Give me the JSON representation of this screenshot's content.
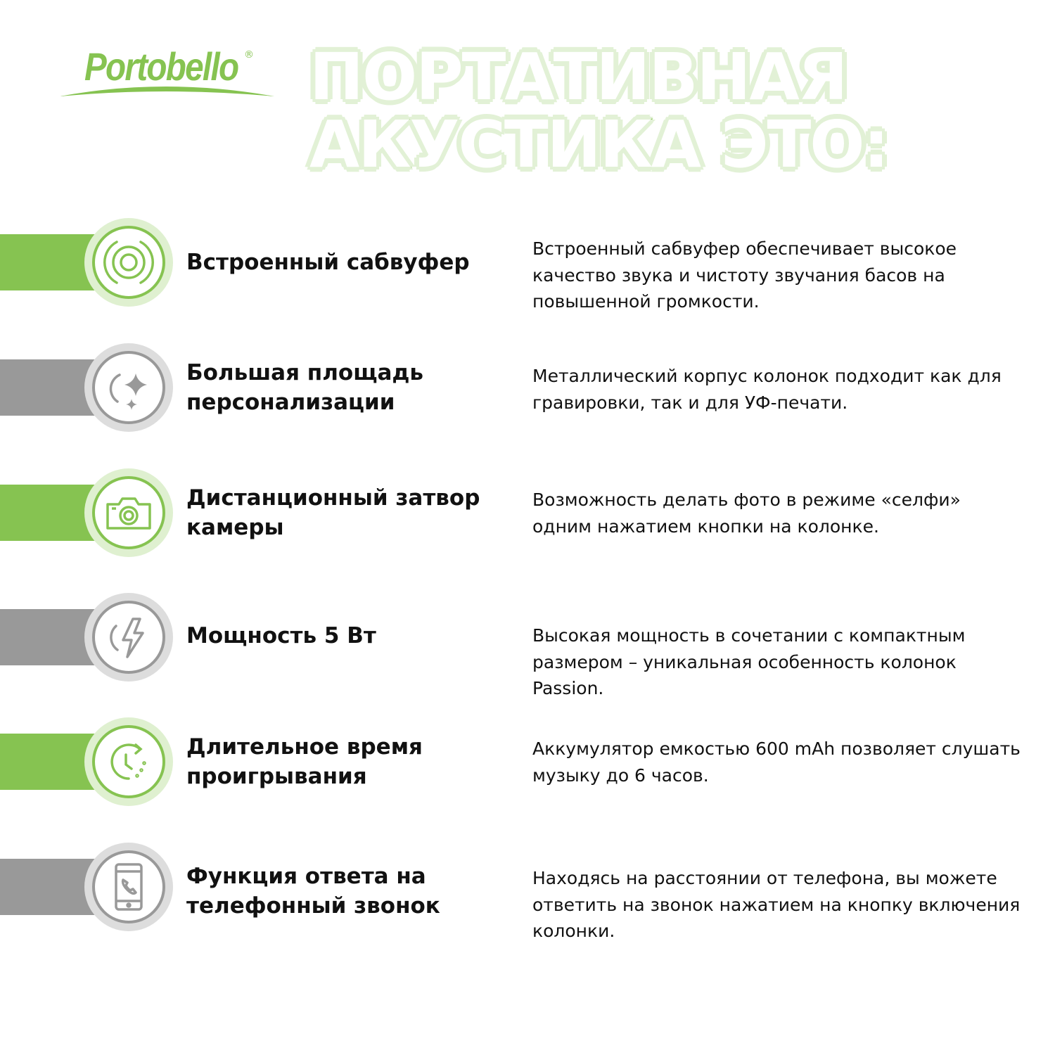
{
  "logo": {
    "text": "Portobello",
    "mark": "®"
  },
  "headline": {
    "line1": "ПОРТАТИВНАЯ",
    "line2": "АКУСТИКА ЭТО:"
  },
  "colors": {
    "green": "#86c351",
    "green_light": "#dff0d0",
    "gray": "#999999",
    "gray_light": "#dddddd"
  },
  "features": [
    {
      "icon": "subwoofer-icon",
      "color": "green",
      "title": "Встроенный сабвуфер",
      "description": "Встроенный сабвуфер обеспечивает высокое качество звука и чистоту звучания басов на повышенной громкости."
    },
    {
      "icon": "sparkle-icon",
      "color": "gray",
      "title": "Большая площадь персонализации",
      "description": "Металлический корпус колонок подходит как для гравировки, так и для УФ-печати."
    },
    {
      "icon": "camera-icon",
      "color": "green",
      "title": "Дистанционный затвор камеры",
      "description": "Возможность делать фото в режиме «селфи» одним нажатием кнопки на колонке."
    },
    {
      "icon": "lightning-icon",
      "color": "gray",
      "title": "Мощность 5 Вт",
      "description": "Высокая мощность в сочетании с компактным размером – уникальная особенность колонок Passion."
    },
    {
      "icon": "clock-icon",
      "color": "green",
      "title": "Длительное время проигрывания",
      "description": "Аккумулятор емкостью 600 mAh позволяет слушать музыку до 6 часов."
    },
    {
      "icon": "phone-call-icon",
      "color": "gray",
      "title": "Функция ответа на телефонный звонок",
      "description": "Находясь на расстоянии от телефона, вы можете ответить на звонок нажатием на кнопку включения колонки."
    }
  ]
}
